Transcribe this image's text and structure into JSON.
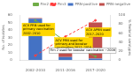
{
  "chart_data": {
    "type": "bar",
    "categories": [
      "2002–2010",
      "2011–2016",
      "2017–2020"
    ],
    "series": [
      {
        "name": "PRN-positive",
        "color": "#4472C4",
        "values": [
          55,
          4,
          2
        ]
      },
      {
        "name": "PRN-negative",
        "color": "#C0504D",
        "values": [
          1,
          18,
          48
        ]
      },
      {
        "name": "Fim2",
        "color": "#70AD47",
        "values": [
          88,
          42,
          8
        ],
        "type": "line",
        "marker": "circle",
        "line_style": "solid",
        "axis": "y2"
      },
      {
        "name": "Fim3",
        "color": "#FF4040",
        "values": [
          10,
          52,
          88
        ],
        "type": "line",
        "marker": "circle",
        "line_style": "dashed",
        "axis": "y2"
      }
    ],
    "stacked": true,
    "ylim": [
      0,
      60
    ],
    "yticks": [
      0,
      10,
      20,
      30,
      40,
      50,
      60
    ],
    "y2lim": [
      0,
      100
    ],
    "y2ticks": [
      0,
      20,
      40,
      60,
      80,
      100
    ],
    "ylabel": "No. of isolates",
    "y2label": "% fimbrial serotypes",
    "legend": "upper right",
    "grid": false,
    "annotations": [
      {
        "text": "ACV PRN used for\nprimary vaccination\n2002–2010",
        "color": "#FFD700"
      },
      {
        "text": "ACV PRN used for\nprimary and booster\nvaccination 2011–2016",
        "color": "#FFD700"
      },
      {
        "text": "ACV ∆PRN used\n2017–2020",
        "color": "#FFD700"
      },
      {
        "text": "Fim 2 used for booster vaccination ~2009",
        "color": "#FFFFFF"
      }
    ]
  }
}
